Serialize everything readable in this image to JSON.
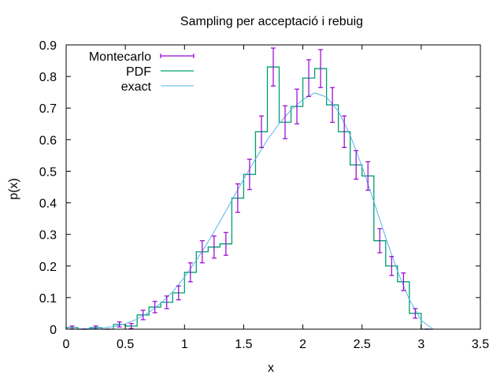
{
  "chart_data": {
    "type": "line",
    "title": "Sampling per acceptació i rebuig",
    "xlabel": "x",
    "ylabel": "p(x)",
    "xlim": [
      0,
      3.5
    ],
    "ylim": [
      0,
      0.9
    ],
    "grid": false,
    "legend_position": "top-left",
    "x_ticks": [
      "0",
      "0.5",
      "1",
      "1.5",
      "2",
      "2.5",
      "3",
      "3.5"
    ],
    "y_ticks": [
      "0",
      "0.1",
      "0.2",
      "0.3",
      "0.4",
      "0.5",
      "0.6",
      "0.7",
      "0.8",
      "0.9"
    ],
    "bin_edges": [
      0.0,
      0.1,
      0.2,
      0.3,
      0.4,
      0.5,
      0.6,
      0.7,
      0.8,
      0.9,
      1.0,
      1.1,
      1.2,
      1.3,
      1.4,
      1.5,
      1.6,
      1.7,
      1.8,
      1.9,
      2.0,
      2.1,
      2.2,
      2.3,
      2.4,
      2.5,
      2.6,
      2.7,
      2.8,
      2.9,
      3.0,
      3.1
    ],
    "series": [
      {
        "name": "Montecarlo",
        "type": "errorbars",
        "color": "#9400d3",
        "x": [
          0.05,
          0.15,
          0.25,
          0.35,
          0.45,
          0.55,
          0.65,
          0.75,
          0.85,
          0.95,
          1.05,
          1.15,
          1.25,
          1.35,
          1.45,
          1.55,
          1.65,
          1.75,
          1.85,
          1.95,
          2.05,
          2.15,
          2.25,
          2.35,
          2.45,
          2.55,
          2.65,
          2.75,
          2.85,
          2.95,
          3.05
        ],
        "y": [
          0.005,
          0.0,
          0.005,
          0.0,
          0.015,
          0.01,
          0.045,
          0.07,
          0.085,
          0.115,
          0.18,
          0.245,
          0.26,
          0.27,
          0.415,
          0.49,
          0.625,
          0.83,
          0.655,
          0.705,
          0.795,
          0.825,
          0.71,
          0.625,
          0.52,
          0.485,
          0.28,
          0.2,
          0.15,
          0.05,
          0.0
        ],
        "err": [
          0.005,
          0.0,
          0.005,
          0.0,
          0.008,
          0.008,
          0.015,
          0.018,
          0.02,
          0.022,
          0.03,
          0.035,
          0.035,
          0.036,
          0.045,
          0.048,
          0.05,
          0.06,
          0.052,
          0.055,
          0.058,
          0.06,
          0.055,
          0.05,
          0.045,
          0.045,
          0.038,
          0.03,
          0.028,
          0.015,
          0.0
        ]
      },
      {
        "name": "PDF",
        "type": "histogram-steps",
        "color": "#009e73",
        "values": [
          0.005,
          0.0,
          0.005,
          0.0,
          0.015,
          0.01,
          0.045,
          0.07,
          0.085,
          0.115,
          0.18,
          0.245,
          0.26,
          0.27,
          0.415,
          0.49,
          0.625,
          0.83,
          0.655,
          0.705,
          0.795,
          0.825,
          0.71,
          0.625,
          0.52,
          0.485,
          0.28,
          0.2,
          0.15,
          0.05,
          0.0
        ]
      },
      {
        "name": "exact",
        "type": "curve",
        "color": "#56b4e9",
        "x": [
          0.0,
          0.1,
          0.2,
          0.3,
          0.4,
          0.5,
          0.6,
          0.7,
          0.8,
          0.9,
          1.0,
          1.1,
          1.2,
          1.3,
          1.4,
          1.5,
          1.6,
          1.7,
          1.8,
          1.9,
          2.0,
          2.1,
          2.2,
          2.3,
          2.4,
          2.5,
          2.6,
          2.7,
          2.8,
          2.9,
          3.0,
          3.1
        ],
        "y": [
          0.0,
          0.0,
          0.002,
          0.004,
          0.008,
          0.017,
          0.032,
          0.053,
          0.082,
          0.118,
          0.165,
          0.218,
          0.277,
          0.341,
          0.408,
          0.475,
          0.539,
          0.599,
          0.651,
          0.694,
          0.727,
          0.748,
          0.735,
          0.69,
          0.614,
          0.515,
          0.404,
          0.29,
          0.183,
          0.094,
          0.028,
          0.0
        ]
      }
    ]
  }
}
